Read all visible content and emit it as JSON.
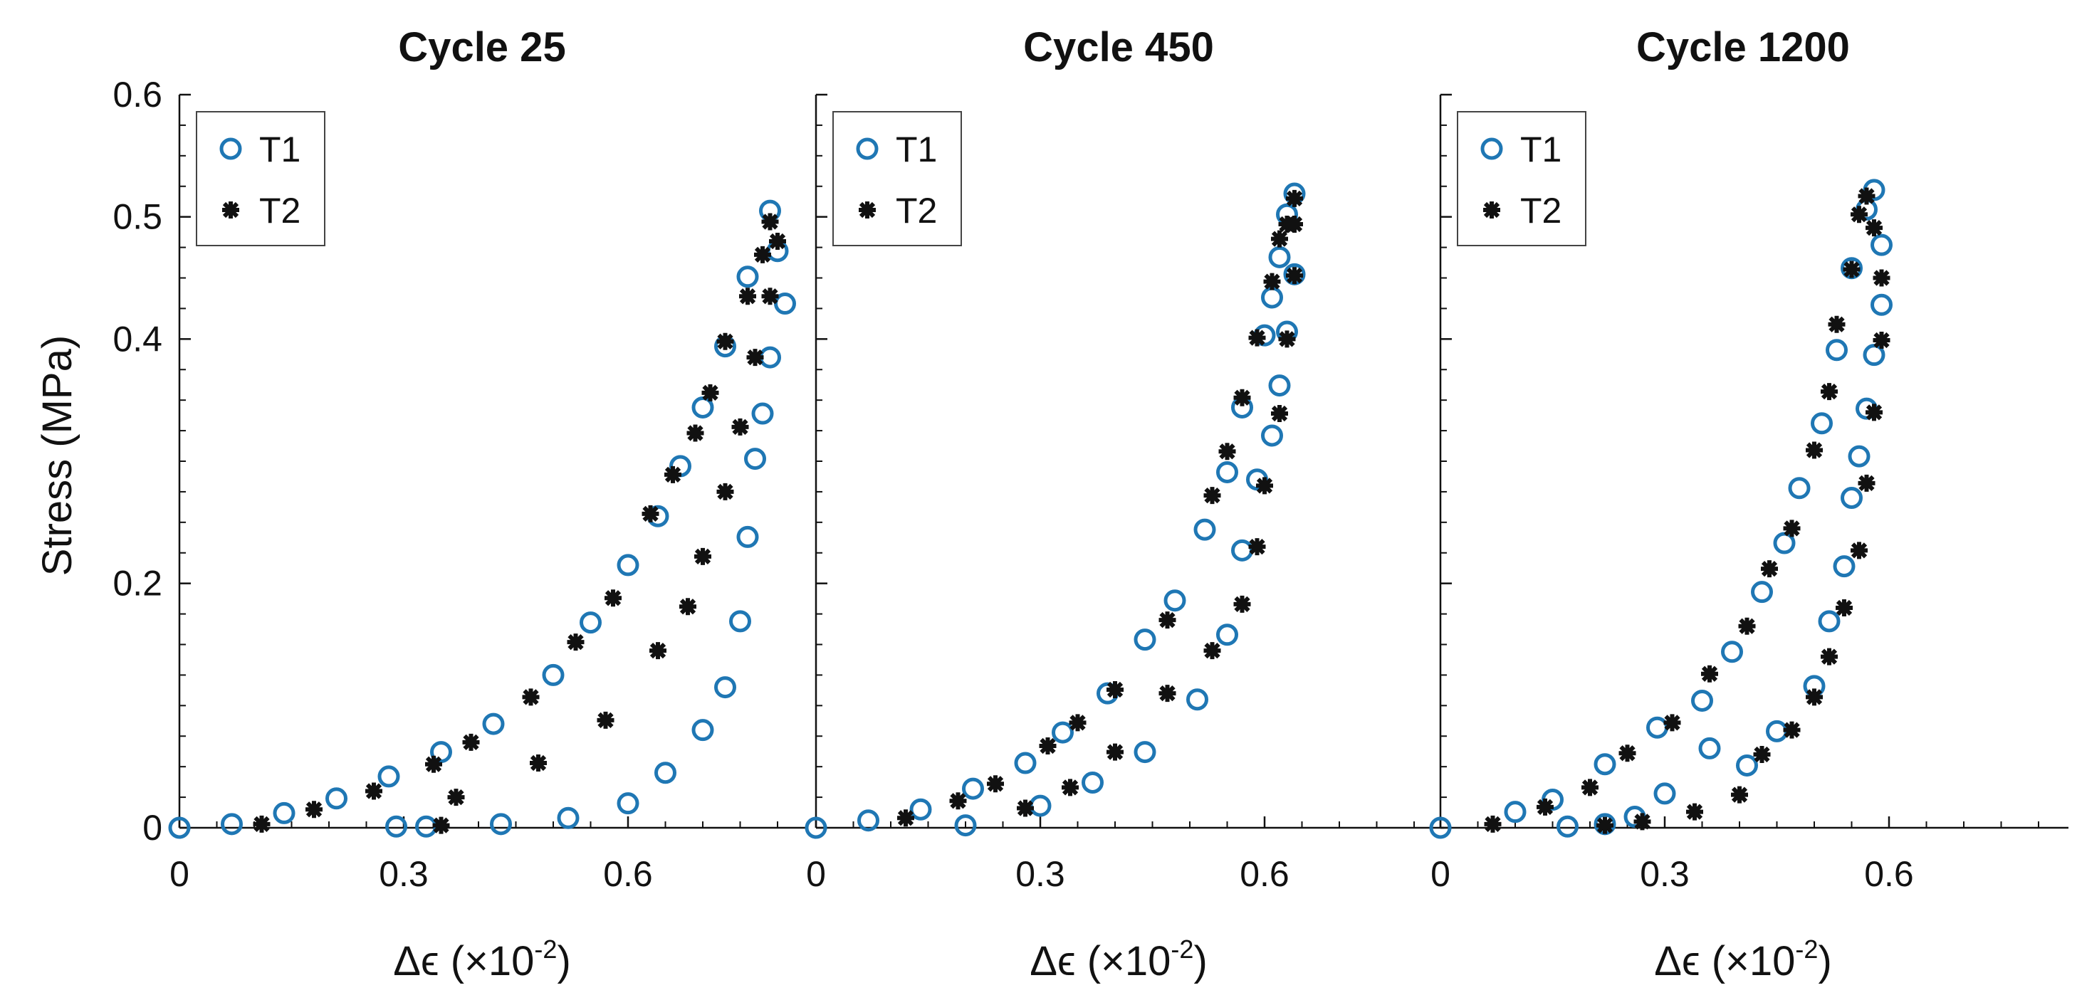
{
  "figure": {
    "ylabel": "Stress (MPa)"
  },
  "colors": {
    "T1": "#1f77b4",
    "T2": "#111111"
  },
  "chart_data": [
    {
      "type": "scatter",
      "title": "Cycle 25",
      "xlabel_main": "Δϵ (×10",
      "xlabel_exp": "-2",
      "xlabel_close": ")",
      "ylabel": "Stress (MPa)",
      "xlim": [
        0,
        0.84
      ],
      "ylim": [
        0,
        0.6
      ],
      "xticks": [
        0,
        0.3,
        0.6
      ],
      "xtick_labels": [
        "0",
        "0.3",
        "0.6"
      ],
      "yticks": [
        0,
        0.2,
        0.4,
        0.5,
        0.6
      ],
      "ytick_labels": [
        "0",
        "0.2",
        "0.4",
        "0.5",
        "0.6"
      ],
      "legend": {
        "position": "top-left",
        "entries": [
          "T1",
          "T2"
        ]
      },
      "series": [
        {
          "name": "T1",
          "marker": "open-circle",
          "x": [
            0,
            0.07,
            0.14,
            0.21,
            0.28,
            0.35,
            0.42,
            0.5,
            0.55,
            0.6,
            0.64,
            0.67,
            0.7,
            0.73,
            0.76,
            0.79,
            0.8,
            0.81,
            0.79,
            0.78,
            0.77,
            0.76,
            0.75,
            0.73,
            0.7,
            0.65,
            0.6,
            0.52,
            0.43,
            0.33,
            0.29
          ],
          "y": [
            0,
            0.003,
            0.012,
            0.024,
            0.042,
            0.062,
            0.085,
            0.125,
            0.168,
            0.215,
            0.255,
            0.296,
            0.344,
            0.394,
            0.451,
            0.505,
            0.472,
            0.429,
            0.385,
            0.339,
            0.302,
            0.238,
            0.169,
            0.115,
            0.08,
            0.045,
            0.02,
            0.008,
            0.003,
            0.001,
            0.001
          ]
        },
        {
          "name": "T2",
          "marker": "asterisk",
          "x": [
            0.11,
            0.18,
            0.26,
            0.34,
            0.39,
            0.47,
            0.53,
            0.58,
            0.63,
            0.66,
            0.69,
            0.71,
            0.73,
            0.76,
            0.78,
            0.79,
            0.8,
            0.79,
            0.77,
            0.75,
            0.73,
            0.7,
            0.68,
            0.64,
            0.57,
            0.48,
            0.37,
            0.35
          ],
          "y": [
            0.003,
            0.015,
            0.03,
            0.052,
            0.07,
            0.107,
            0.152,
            0.188,
            0.257,
            0.289,
            0.323,
            0.356,
            0.398,
            0.435,
            0.469,
            0.496,
            0.48,
            0.435,
            0.385,
            0.328,
            0.275,
            0.222,
            0.181,
            0.145,
            0.088,
            0.053,
            0.025,
            0.002
          ]
        }
      ]
    },
    {
      "type": "scatter",
      "title": "Cycle 450",
      "xlabel_main": "Δϵ (×10",
      "xlabel_exp": "-2",
      "xlabel_close": ")",
      "ylabel": "Stress (MPa)",
      "xlim": [
        0,
        0.84
      ],
      "ylim": [
        0,
        0.6
      ],
      "xticks": [
        0,
        0.3,
        0.6
      ],
      "xtick_labels": [
        "0",
        "0.3",
        "0.6"
      ],
      "yticks": [
        0,
        0.2,
        0.4,
        0.5,
        0.6
      ],
      "ytick_labels": [
        "0",
        "0.2",
        "0.4",
        "0.5",
        "0.6"
      ],
      "legend": {
        "position": "top-left",
        "entries": [
          "T1",
          "T2"
        ]
      },
      "series": [
        {
          "name": "T1",
          "marker": "open-circle",
          "x": [
            0,
            0.07,
            0.14,
            0.21,
            0.28,
            0.33,
            0.39,
            0.44,
            0.48,
            0.52,
            0.55,
            0.57,
            0.6,
            0.61,
            0.62,
            0.63,
            0.64,
            0.64,
            0.63,
            0.62,
            0.61,
            0.59,
            0.57,
            0.55,
            0.51,
            0.44,
            0.37,
            0.3,
            0.2
          ],
          "y": [
            0,
            0.006,
            0.015,
            0.032,
            0.053,
            0.078,
            0.11,
            0.154,
            0.186,
            0.244,
            0.291,
            0.344,
            0.403,
            0.434,
            0.467,
            0.502,
            0.519,
            0.453,
            0.406,
            0.362,
            0.321,
            0.285,
            0.227,
            0.158,
            0.105,
            0.062,
            0.037,
            0.018,
            0.002
          ]
        },
        {
          "name": "T2",
          "marker": "asterisk",
          "x": [
            0.12,
            0.19,
            0.24,
            0.31,
            0.35,
            0.4,
            0.47,
            0.53,
            0.55,
            0.57,
            0.59,
            0.61,
            0.62,
            0.63,
            0.64,
            0.64,
            0.64,
            0.63,
            0.62,
            0.6,
            0.59,
            0.57,
            0.53,
            0.47,
            0.4,
            0.34,
            0.28
          ],
          "y": [
            0.008,
            0.022,
            0.036,
            0.067,
            0.086,
            0.113,
            0.17,
            0.272,
            0.308,
            0.352,
            0.401,
            0.447,
            0.482,
            0.494,
            0.515,
            0.494,
            0.452,
            0.4,
            0.339,
            0.28,
            0.23,
            0.183,
            0.145,
            0.11,
            0.062,
            0.033,
            0.016
          ]
        }
      ]
    },
    {
      "type": "scatter",
      "title": "Cycle 1200",
      "xlabel_main": "Δϵ (×10",
      "xlabel_exp": "-2",
      "xlabel_close": ")",
      "ylabel": "Stress (MPa)",
      "xlim": [
        0,
        0.84
      ],
      "ylim": [
        0,
        0.6
      ],
      "xticks": [
        0,
        0.3,
        0.6
      ],
      "xtick_labels": [
        "0",
        "0.3",
        "0.6"
      ],
      "yticks": [
        0,
        0.2,
        0.4,
        0.5,
        0.6
      ],
      "ytick_labels": [
        "0",
        "0.2",
        "0.4",
        "0.5",
        "0.6"
      ],
      "legend": {
        "position": "top-left",
        "entries": [
          "T1",
          "T2"
        ]
      },
      "series": [
        {
          "name": "T1",
          "marker": "open-circle",
          "x": [
            0,
            0.1,
            0.15,
            0.22,
            0.29,
            0.35,
            0.39,
            0.43,
            0.46,
            0.48,
            0.51,
            0.53,
            0.55,
            0.57,
            0.58,
            0.59,
            0.59,
            0.58,
            0.57,
            0.56,
            0.55,
            0.54,
            0.52,
            0.5,
            0.45,
            0.41,
            0.36,
            0.3,
            0.26,
            0.22,
            0.17
          ],
          "y": [
            0,
            0.013,
            0.023,
            0.052,
            0.082,
            0.104,
            0.144,
            0.193,
            0.233,
            0.278,
            0.331,
            0.391,
            0.458,
            0.506,
            0.522,
            0.477,
            0.428,
            0.387,
            0.343,
            0.304,
            0.27,
            0.214,
            0.169,
            0.116,
            0.079,
            0.051,
            0.065,
            0.028,
            0.009,
            0.003,
            0.001
          ]
        },
        {
          "name": "T2",
          "marker": "asterisk",
          "x": [
            0.07,
            0.14,
            0.2,
            0.25,
            0.31,
            0.36,
            0.41,
            0.44,
            0.47,
            0.5,
            0.52,
            0.53,
            0.55,
            0.56,
            0.57,
            0.58,
            0.59,
            0.59,
            0.58,
            0.57,
            0.56,
            0.54,
            0.52,
            0.5,
            0.47,
            0.43,
            0.4,
            0.34,
            0.27,
            0.22
          ],
          "y": [
            0.003,
            0.017,
            0.033,
            0.061,
            0.086,
            0.126,
            0.165,
            0.212,
            0.245,
            0.309,
            0.357,
            0.412,
            0.457,
            0.502,
            0.517,
            0.491,
            0.45,
            0.399,
            0.34,
            0.282,
            0.227,
            0.18,
            0.14,
            0.107,
            0.08,
            0.06,
            0.027,
            0.013,
            0.005,
            0.002
          ]
        }
      ]
    }
  ]
}
